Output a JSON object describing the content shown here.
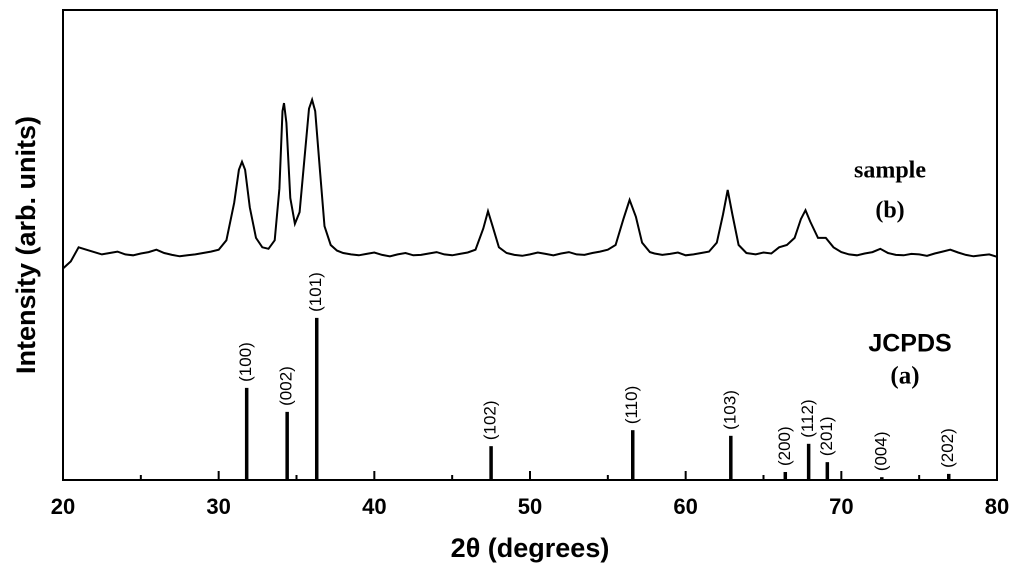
{
  "chart_data": {
    "type": "xrd",
    "xlabel": "2θ (degrees)",
    "ylabel": "Intensity (arb. units)",
    "xlim": [
      20,
      80
    ],
    "xticks": [
      20,
      30,
      40,
      50,
      60,
      70,
      80
    ],
    "xminorticks": [
      25,
      35,
      45,
      55,
      65,
      75
    ],
    "ylim": [
      0,
      100
    ],
    "annotations": [
      "sample",
      "(b)",
      "JCPDS",
      "(a)"
    ],
    "series": [
      {
        "type": "line",
        "color": "#000000",
        "x": [
          20,
          20.5,
          21,
          21.5,
          22,
          22.5,
          23,
          23.5,
          24,
          24.5,
          25,
          25.5,
          26,
          26.5,
          27,
          27.5,
          28,
          28.5,
          29,
          29.5,
          30,
          30.5,
          31,
          31.3,
          31.5,
          31.7,
          32,
          32.4,
          32.8,
          33.2,
          33.6,
          33.9,
          34.1,
          34.2,
          34.35,
          34.6,
          34.9,
          35.2,
          35.5,
          35.8,
          36,
          36.2,
          36.5,
          36.8,
          37.2,
          37.6,
          38,
          38.5,
          39,
          39.5,
          40,
          40.5,
          41,
          41.5,
          42,
          42.5,
          43,
          43.5,
          44,
          44.5,
          45,
          45.5,
          46,
          46.5,
          47,
          47.3,
          47.6,
          48,
          48.5,
          49,
          49.5,
          50,
          50.5,
          51,
          51.5,
          52,
          52.5,
          53,
          53.5,
          54,
          54.5,
          55,
          55.5,
          56,
          56.4,
          56.8,
          57.2,
          57.7,
          58,
          58.5,
          59,
          59.5,
          60,
          60.5,
          61,
          61.5,
          62,
          62.4,
          62.7,
          63,
          63.4,
          63.9,
          64.5,
          65,
          65.5,
          66,
          66.5,
          67,
          67.4,
          67.7,
          68,
          68.5,
          69,
          69.5,
          70,
          70.5,
          71,
          71.5,
          72,
          72.5,
          73,
          73.5,
          74,
          74.5,
          75,
          75.5,
          76,
          76.5,
          77,
          77.5,
          78,
          78.5,
          79,
          79.5,
          80
        ],
        "values": [
          45.0,
          46.5,
          49.5,
          49.0,
          48.5,
          48.0,
          48.3,
          48.6,
          48.0,
          47.8,
          48.2,
          48.5,
          49.0,
          48.3,
          47.9,
          47.6,
          47.8,
          48.0,
          48.3,
          48.6,
          49.0,
          51.0,
          59.0,
          66.0,
          67.7,
          66.0,
          58.0,
          51.5,
          49.5,
          49.2,
          51.0,
          62.0,
          78.5,
          80.2,
          76.0,
          60.0,
          54.5,
          57.0,
          68.0,
          79.0,
          80.9,
          78.5,
          66.0,
          54.0,
          50.0,
          48.8,
          48.3,
          48.0,
          47.8,
          48.1,
          48.4,
          47.9,
          47.6,
          48.0,
          48.3,
          47.8,
          47.9,
          48.2,
          48.5,
          48.0,
          47.8,
          48.1,
          48.4,
          49.0,
          53.5,
          57.2,
          54.0,
          49.5,
          48.3,
          47.9,
          47.7,
          48.0,
          48.4,
          48.1,
          47.8,
          48.2,
          48.5,
          48.0,
          47.9,
          48.3,
          48.6,
          49.0,
          50.0,
          55.5,
          59.6,
          56.0,
          50.5,
          48.5,
          48.2,
          47.9,
          48.1,
          48.4,
          47.8,
          48.0,
          48.3,
          48.6,
          50.5,
          56.5,
          61.7,
          56.5,
          50.0,
          48.3,
          48.0,
          48.4,
          48.2,
          49.5,
          50.0,
          51.5,
          55.5,
          57.4,
          55.0,
          51.5,
          51.5,
          49.5,
          48.5,
          48.0,
          47.8,
          48.2,
          48.5,
          49.2,
          48.3,
          47.9,
          47.8,
          48.1,
          48.0,
          47.7,
          48.2,
          48.6,
          49.0,
          48.4,
          47.9,
          47.6,
          47.8,
          48.0,
          47.5
        ]
      },
      {
        "type": "stem",
        "color": "#000000",
        "x": [
          31.8,
          34.4,
          36.3,
          47.5,
          56.6,
          62.9,
          66.4,
          67.9,
          69.1,
          72.6,
          76.9
        ],
        "values": [
          19.6,
          14.5,
          34.5,
          7.2,
          10.6,
          9.4,
          1.7,
          7.7,
          3.8,
          0.6,
          1.3
        ],
        "labels": [
          "(100)",
          "(002)",
          "(101)",
          "(102)",
          "(110)",
          "(103)",
          "(200)",
          "(112)",
          "(201)",
          "(004)",
          "(202)"
        ]
      }
    ]
  }
}
